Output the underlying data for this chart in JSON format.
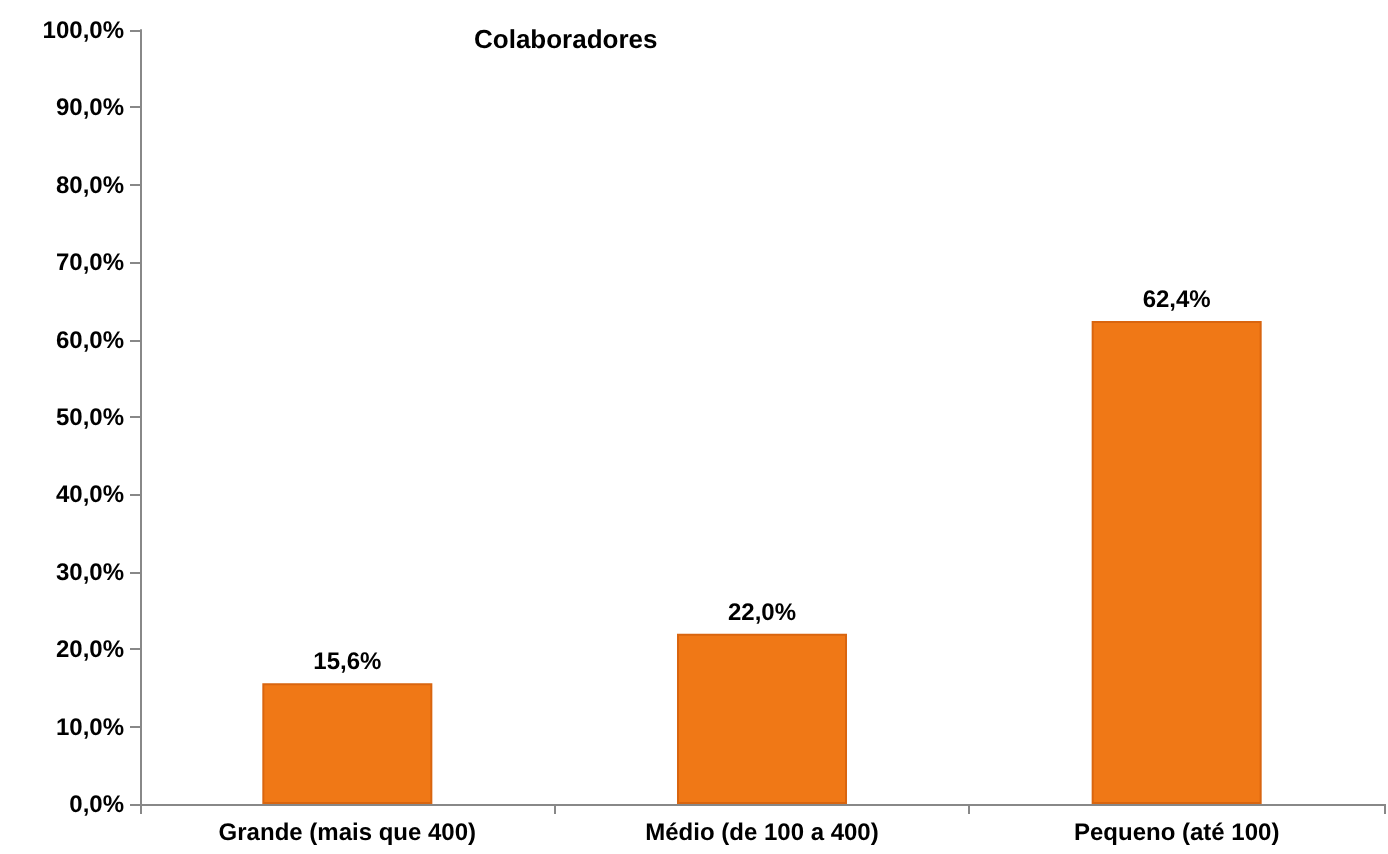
{
  "chart_data": {
    "type": "bar",
    "title": "Colaboradores",
    "categories": [
      "Grande (mais que 400)",
      "Médio (de 100 a 400)",
      "Pequeno (até 100)"
    ],
    "values": [
      15.6,
      22.0,
      62.4
    ],
    "value_labels": [
      "15,6%",
      "22,0%",
      "62,4%"
    ],
    "color": "#f07816",
    "ylim": [
      0,
      100
    ],
    "yticks": [
      {
        "value": 0,
        "label": "0,0%"
      },
      {
        "value": 10,
        "label": "10,0%"
      },
      {
        "value": 20,
        "label": "20,0%"
      },
      {
        "value": 30,
        "label": "30,0%"
      },
      {
        "value": 40,
        "label": "40,0%"
      },
      {
        "value": 50,
        "label": "50,0%"
      },
      {
        "value": 60,
        "label": "60,0%"
      },
      {
        "value": 70,
        "label": "70,0%"
      },
      {
        "value": 80,
        "label": "80,0%"
      },
      {
        "value": 90,
        "label": "90,0%"
      },
      {
        "value": 100,
        "label": "100,0%"
      }
    ],
    "grid": false
  }
}
